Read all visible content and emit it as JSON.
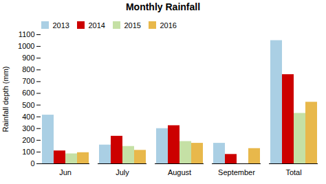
{
  "chart_data": {
    "type": "bar",
    "title": "Monthly Rainfall",
    "ylabel": "Rainfall depth (mm)",
    "categories": [
      "Jun",
      "July",
      "August",
      "September",
      "Total"
    ],
    "series": [
      {
        "name": "2013",
        "color": "#aacfe4",
        "values": [
          415,
          160,
          300,
          175,
          1050
        ]
      },
      {
        "name": "2014",
        "color": "#cc0000",
        "values": [
          110,
          235,
          325,
          80,
          760
        ]
      },
      {
        "name": "2015",
        "color": "#c5e0a5",
        "values": [
          85,
          148,
          190,
          0,
          430
        ]
      },
      {
        "name": "2016",
        "color": "#e8b84b",
        "values": [
          95,
          115,
          175,
          130,
          525
        ]
      }
    ],
    "ylim": [
      0,
      1100
    ],
    "yticks": [
      0,
      100,
      200,
      300,
      400,
      500,
      600,
      700,
      800,
      900,
      1000,
      1100
    ],
    "grid": false,
    "legend": "upper left"
  }
}
